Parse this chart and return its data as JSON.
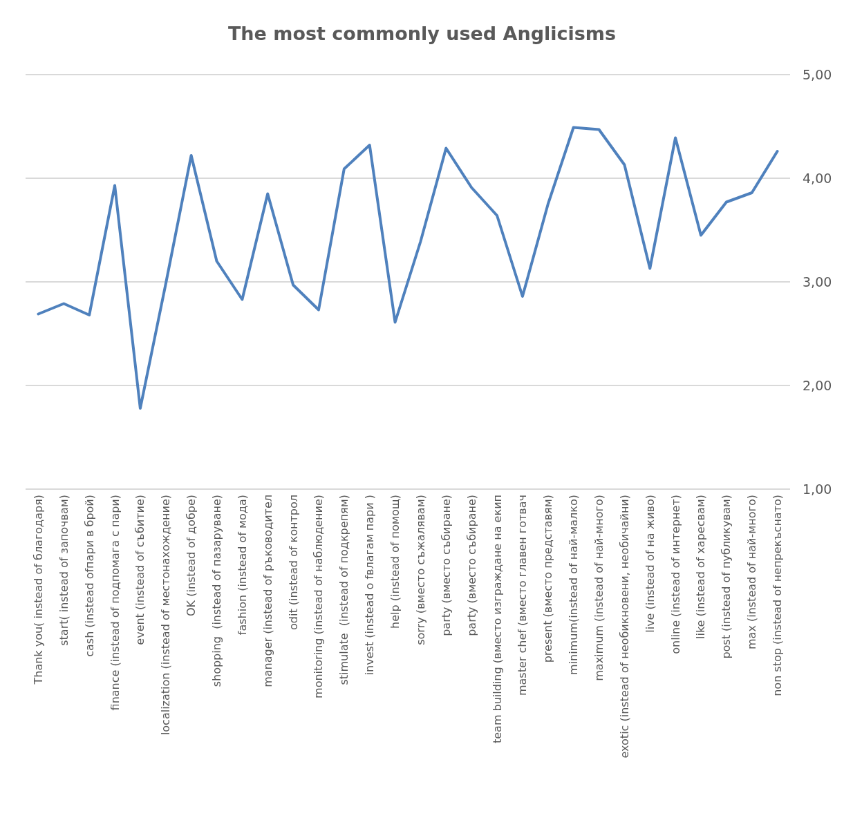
{
  "chart_data": {
    "type": "line",
    "title": "The most commonly used Anglicisms",
    "categories": [
      "Thank you( instead of благодаря)",
      "start( instead of започвам)",
      "cash (instead ofпари в брой)",
      "finance (instead of подпомага с пари)",
      "event (instead of събитие)",
      "localization (instead of местонахождение)",
      "OK (instead of добре)",
      "shopping  (instead of пазаруване)",
      "fashion (instead of мода)",
      "manager (instead of ръководител",
      "odit (instead of контрол",
      "monitoring (instead of наблюдение)",
      "stimulate  (instead of подкрепям)",
      "invest (instead o fвлагам пари )",
      "help (instead of помощ)",
      "sorry (вместо съжалявам)",
      "party (вместо събиране)",
      "party (вместо събиране)",
      "team building (вместо изграждане на екип",
      "master chef (вместо главен готвач",
      "present (вместо представям)",
      "minimum(instead of най-малко)",
      "maximum (instead of най-много)",
      "exotic (instead of необикновени, необичайни)",
      "live (instead of на живо)",
      "online (instead of интернет)",
      "like (instead of харесвам)",
      "post (instead of публикувам)",
      "max (instead of най-много)",
      "non stop (instead of непрекъснато)"
    ],
    "series": [
      {
        "color": "#4f81bd",
        "values": [
          2.69,
          2.79,
          2.68,
          3.93,
          1.78,
          2.98,
          4.22,
          3.2,
          2.83,
          3.85,
          2.97,
          2.73,
          4.09,
          4.32,
          2.61,
          3.39,
          4.29,
          3.91,
          3.64,
          2.86,
          3.75,
          4.49,
          4.47,
          4.13,
          3.13,
          4.39,
          3.45,
          3.77,
          3.86,
          4.26
        ]
      }
    ],
    "ylim": [
      1,
      5
    ],
    "yticks": [
      {
        "value": 1,
        "label": "1,00"
      },
      {
        "value": 2,
        "label": "2,00"
      },
      {
        "value": 3,
        "label": "3,00"
      },
      {
        "value": 4,
        "label": "4,00"
      },
      {
        "value": 5,
        "label": "5,00"
      }
    ],
    "grid": "y",
    "marker": "none",
    "line_style": "solid"
  }
}
